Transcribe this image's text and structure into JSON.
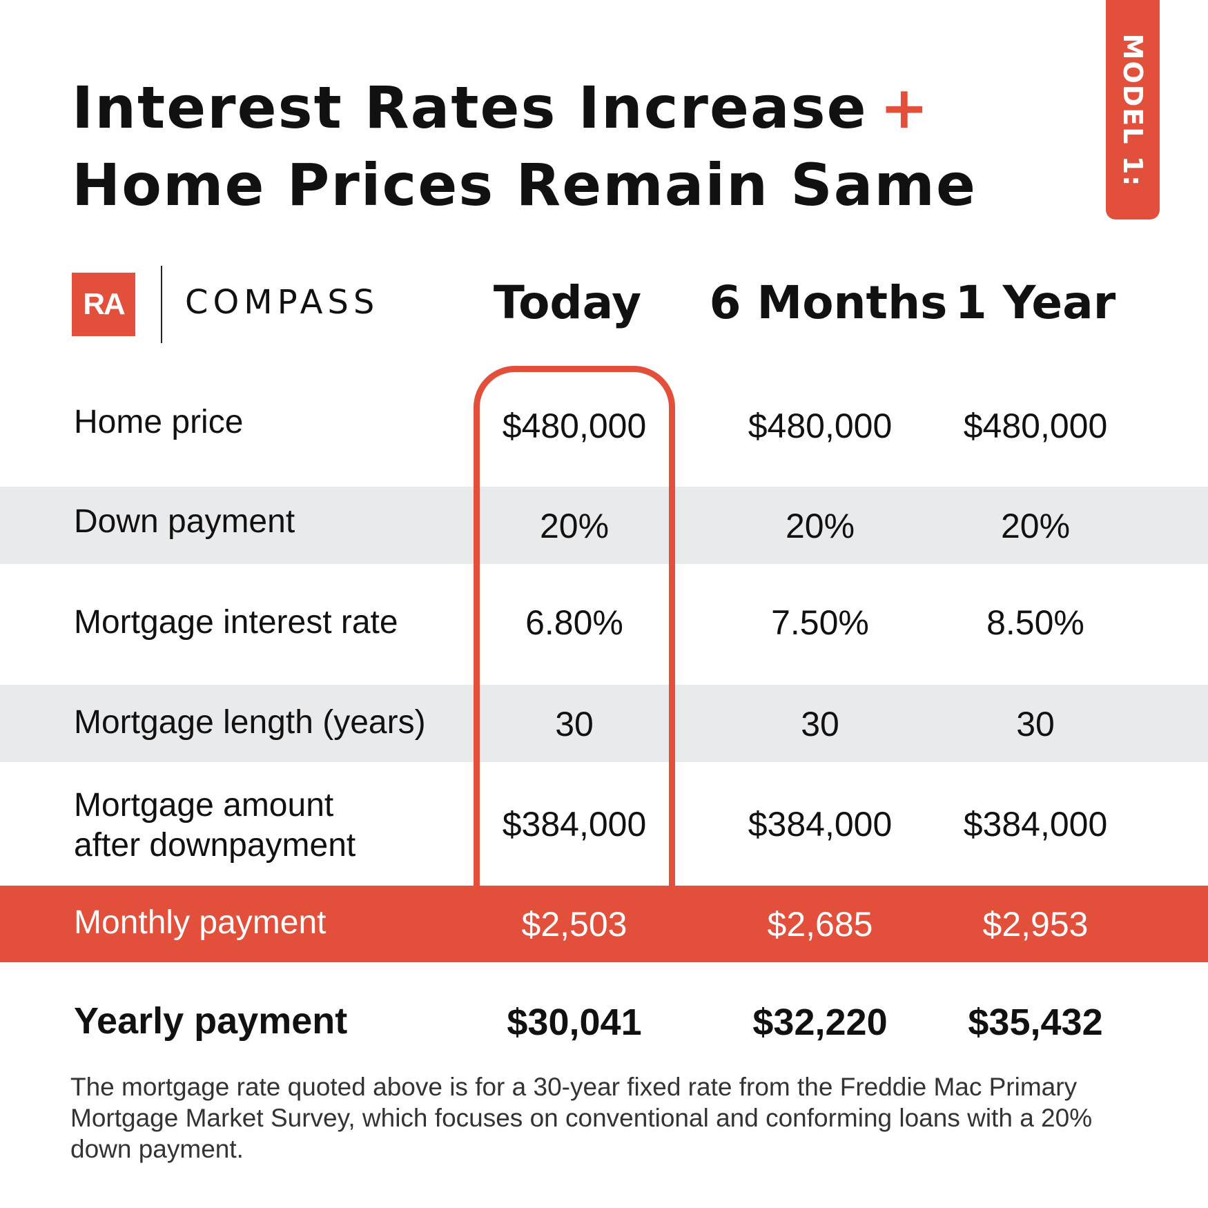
{
  "title": {
    "line1": "Interest Rates Increase",
    "plus": "+",
    "line2": "Home Prices Remain Same"
  },
  "tab_label": "MODEL 1:",
  "brand": {
    "ra": "RA",
    "compass": "COMPASS",
    "accent_color": "#e2503c"
  },
  "columns": [
    "Today",
    "6 Months",
    "1 Year"
  ],
  "rows": [
    {
      "label": "Home price",
      "values": [
        "$480,000",
        "$480,000",
        "$480,000"
      ]
    },
    {
      "label": "Down payment",
      "values": [
        "20%",
        "20%",
        "20%"
      ]
    },
    {
      "label": "Mortgage interest rate",
      "values": [
        "6.80%",
        "7.50%",
        "8.50%"
      ]
    },
    {
      "label": "Mortgage length (years)",
      "values": [
        "30",
        "30",
        "30"
      ]
    },
    {
      "label_line1": "Mortgage amount",
      "label_line2": "after  downpayment",
      "values": [
        "$384,000",
        "$384,000",
        "$384,000"
      ]
    },
    {
      "label": "Monthly payment",
      "values": [
        "$2,503",
        "$2,685",
        "$2,953"
      ]
    },
    {
      "label": "Yearly payment",
      "values": [
        "$30,041",
        "$32,220",
        "$35,432"
      ]
    }
  ],
  "footnote": "The mortgage rate quoted above is for a 30-year fixed rate from the Freddie Mac Primary Mortgage Market Survey, which focuses on conventional and conforming loans with a 20% down payment."
}
